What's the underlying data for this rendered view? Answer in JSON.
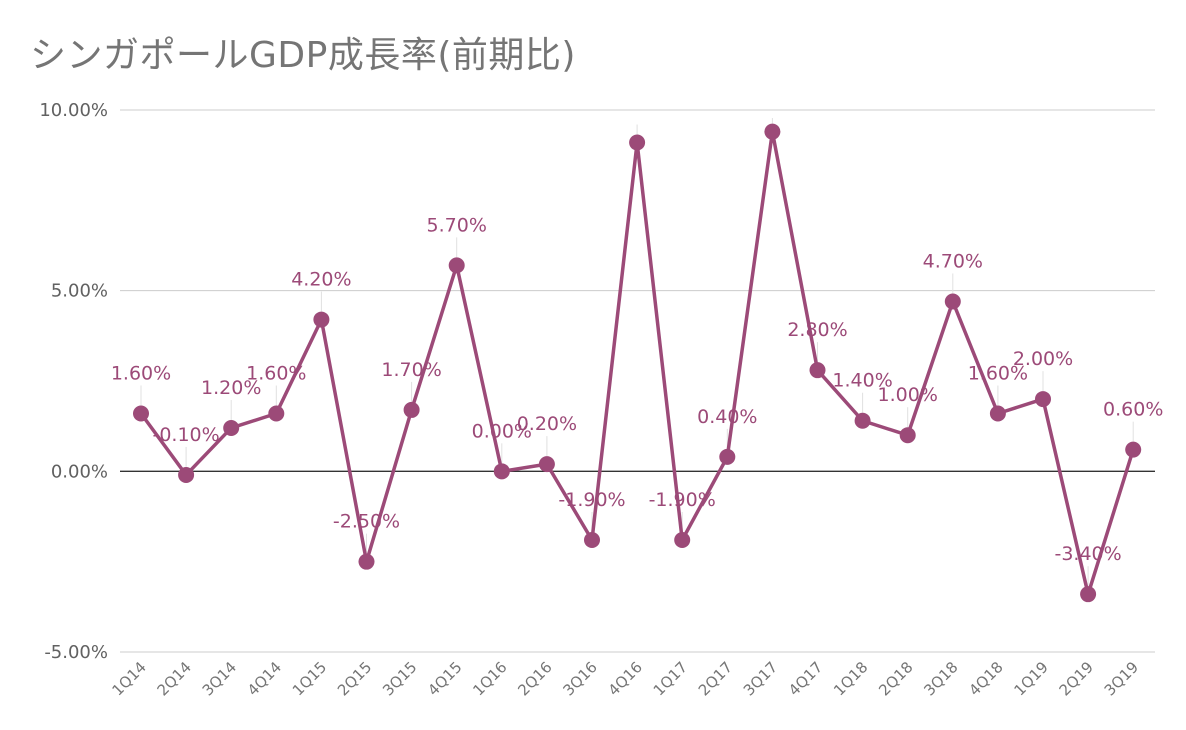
{
  "chart_data": {
    "type": "line",
    "title": "シンガポールGDP成長率(前期比)",
    "xlabel": "",
    "ylabel": "",
    "categories": [
      "1Q14",
      "2Q14",
      "3Q14",
      "4Q14",
      "1Q15",
      "2Q15",
      "3Q15",
      "4Q15",
      "1Q16",
      "2Q16",
      "3Q16",
      "4Q16",
      "1Q17",
      "2Q17",
      "3Q17",
      "4Q17",
      "1Q18",
      "2Q18",
      "3Q18",
      "4Q18",
      "1Q19",
      "2Q19",
      "3Q19"
    ],
    "series": [
      {
        "values": [
          1.6,
          -0.1,
          1.2,
          1.6,
          4.2,
          -2.5,
          1.7,
          5.7,
          0.0,
          0.2,
          -1.9,
          9.1,
          -1.9,
          0.4,
          9.4,
          2.8,
          1.4,
          1.0,
          4.7,
          1.6,
          2.0,
          -3.4,
          0.6
        ],
        "labels": [
          "1.60%",
          "-0.10%",
          "1.20%",
          "1.60%",
          "4.20%",
          "-2.50%",
          "1.70%",
          "5.70%",
          "0.00%",
          "0.20%",
          "-1.90%",
          "",
          "-1.90%",
          "0.40%",
          "",
          "2.80%",
          "1.40%",
          "1.00%",
          "4.70%",
          "1.60%",
          "2.00%",
          "-3.40%",
          "0.60%"
        ],
        "color": "#9c4a78"
      }
    ],
    "ylim": [
      -5,
      10
    ],
    "yticks": [
      -5,
      0,
      5,
      10
    ],
    "ytick_labels": [
      "-5.00%",
      "0.00%",
      "5.00%",
      "10.00%"
    ],
    "grid": true,
    "legend": "none"
  }
}
